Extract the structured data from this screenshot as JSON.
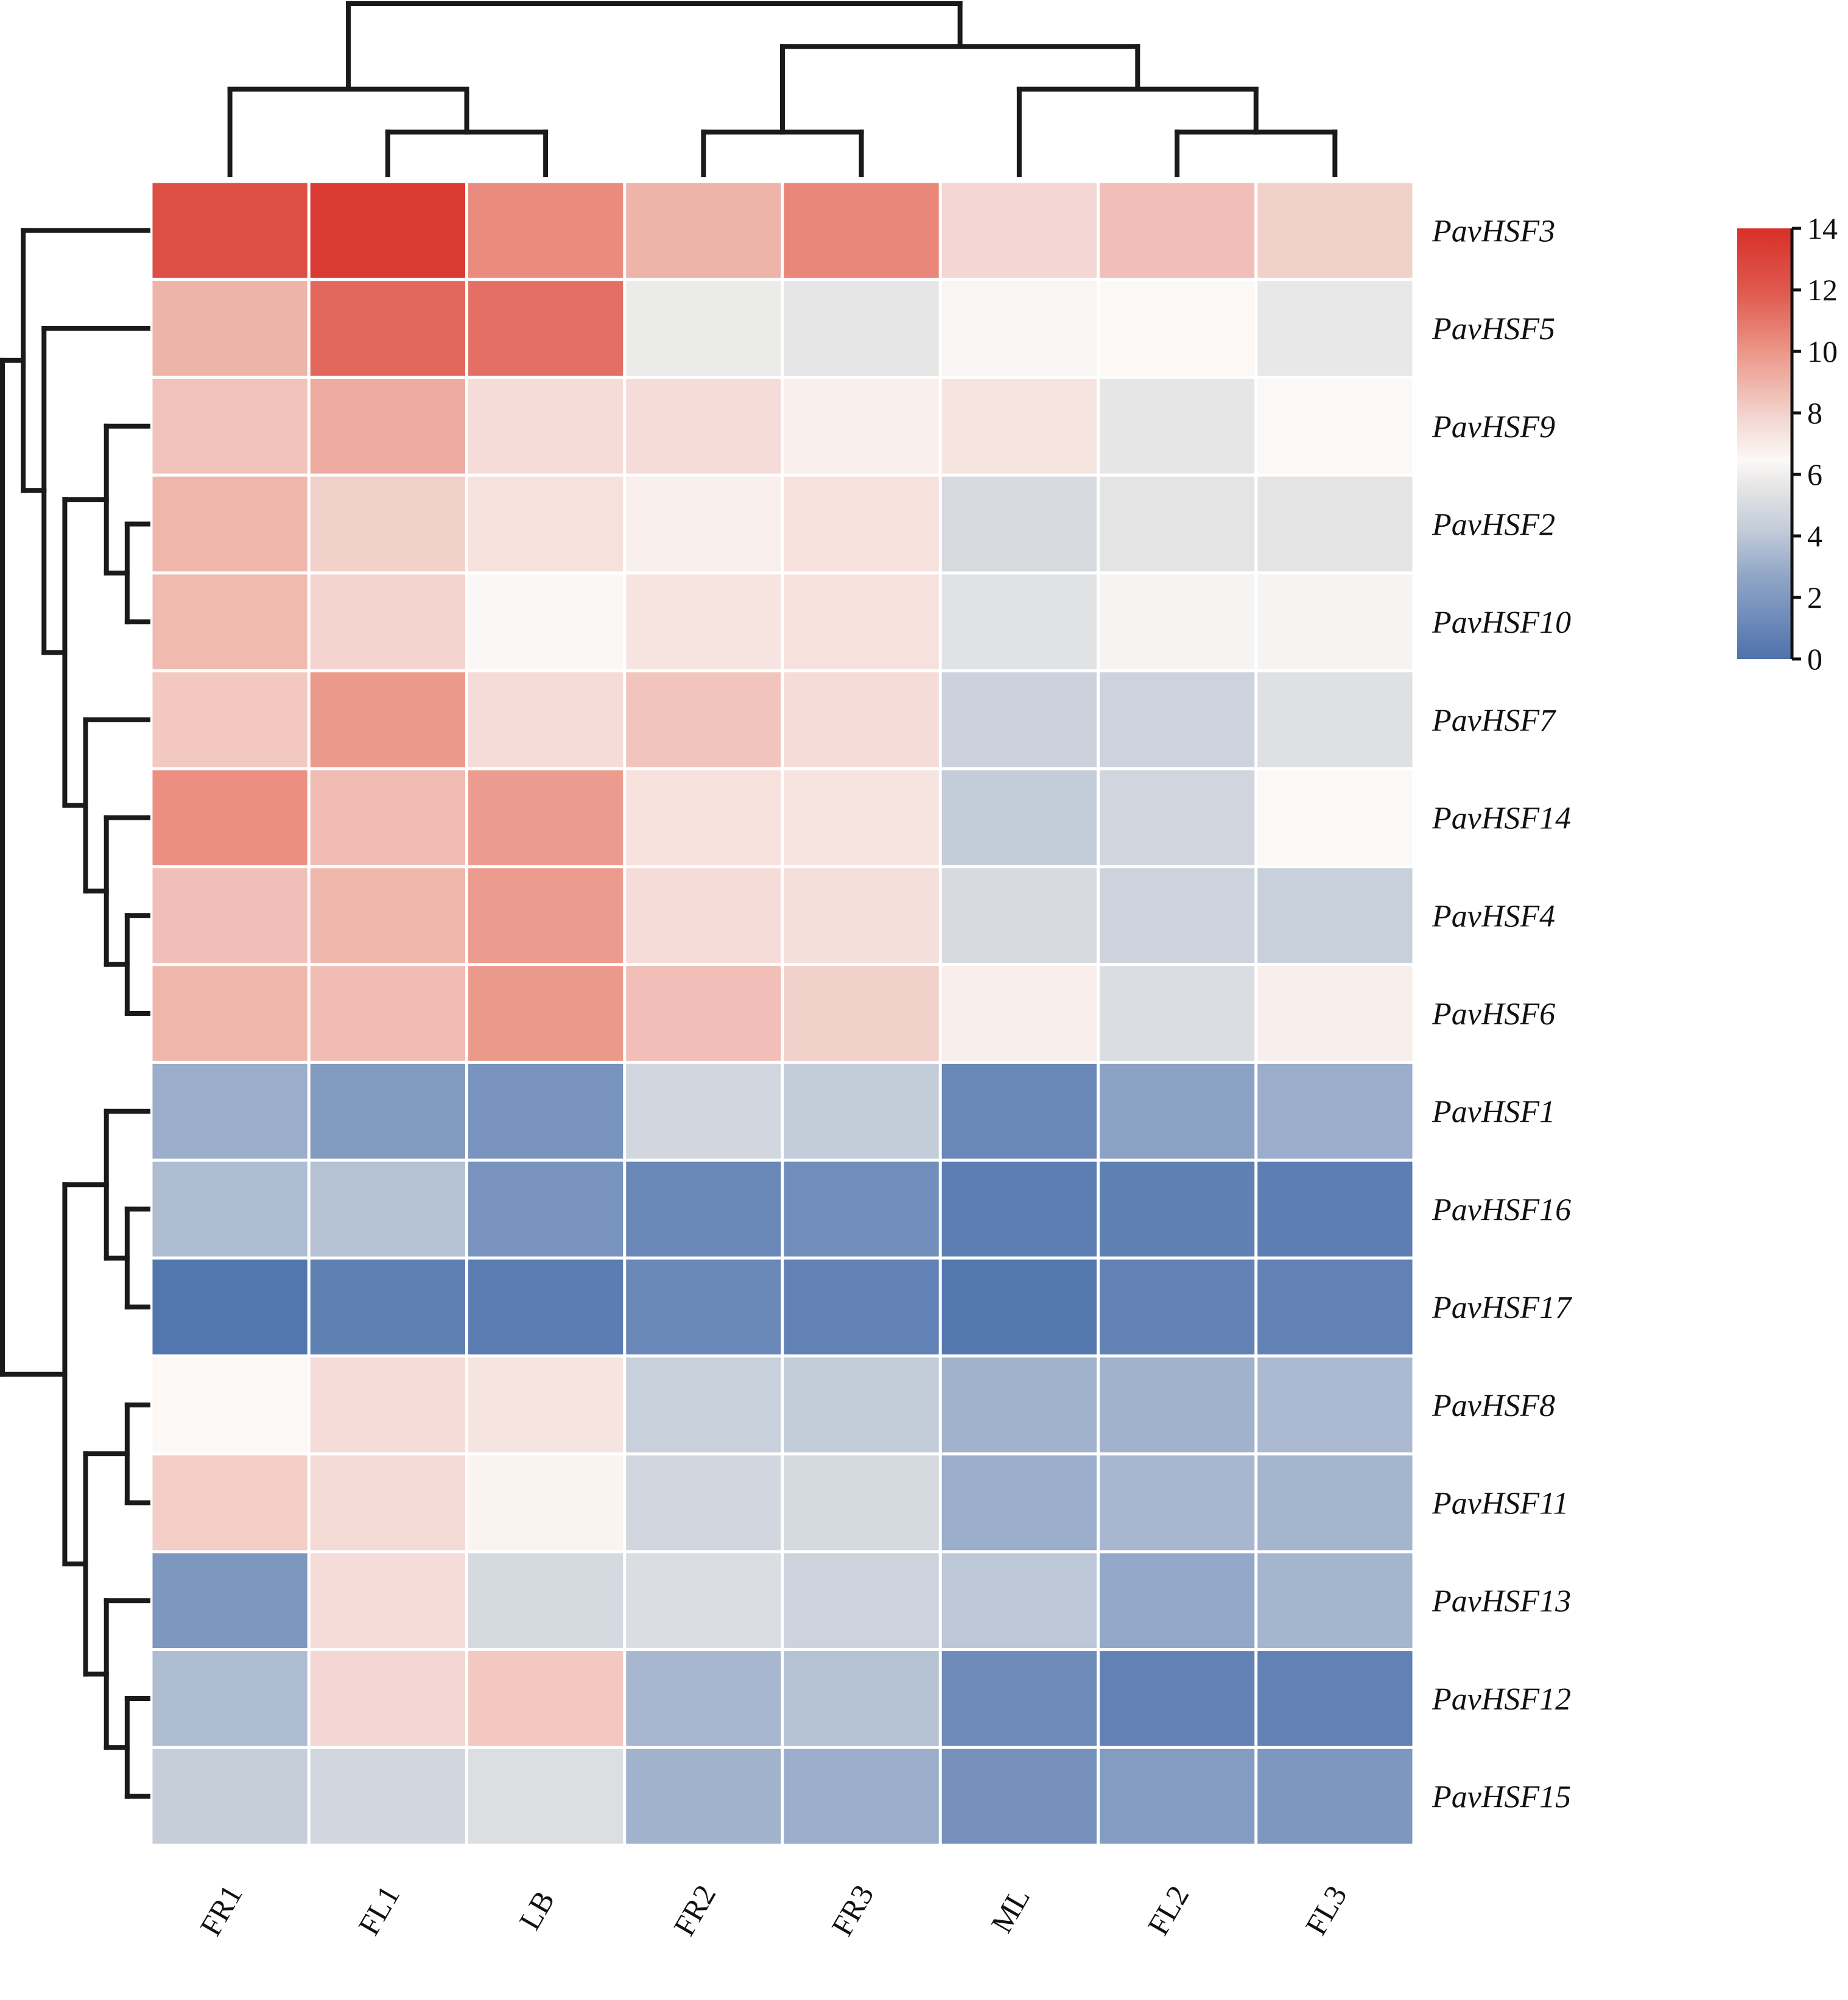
{
  "chart_data": {
    "type": "heatmap",
    "title": "",
    "xlabel": "",
    "ylabel": "",
    "columns": [
      "FR1",
      "FL1",
      "LB",
      "FR2",
      "FR3",
      "ML",
      "FL2",
      "FL3"
    ],
    "rows": [
      "PavHSF3",
      "PavHSF5",
      "PavHSF9",
      "PavHSF2",
      "PavHSF10",
      "PavHSF7",
      "PavHSF14",
      "PavHSF4",
      "PavHSF6",
      "PavHSF1",
      "PavHSF16",
      "PavHSF17",
      "PavHSF8",
      "PavHSF11",
      "PavHSF13",
      "PavHSF12",
      "PavHSF15"
    ],
    "values": [
      [
        12.5,
        13.5,
        10.3,
        9.0,
        10.5,
        7.8,
        8.6,
        8.0
      ],
      [
        9.0,
        11.5,
        11.2,
        5.8,
        5.6,
        6.3,
        6.5,
        5.7
      ],
      [
        8.5,
        9.3,
        7.6,
        7.6,
        6.8,
        7.3,
        5.6,
        6.5
      ],
      [
        8.9,
        8.0,
        7.4,
        6.8,
        7.4,
        5.0,
        5.5,
        5.5
      ],
      [
        8.8,
        7.9,
        6.4,
        7.3,
        7.4,
        5.4,
        6.2,
        6.2
      ],
      [
        8.3,
        9.9,
        7.6,
        8.4,
        7.6,
        4.5,
        4.6,
        5.3
      ],
      [
        10.2,
        8.7,
        9.8,
        7.4,
        7.3,
        4.2,
        4.7,
        6.5
      ],
      [
        8.6,
        8.9,
        9.8,
        7.6,
        7.5,
        5.0,
        4.6,
        4.4
      ],
      [
        8.9,
        8.7,
        9.9,
        8.6,
        8.0,
        6.9,
        5.1,
        6.9
      ],
      [
        3.0,
        2.1,
        1.7,
        4.8,
        4.2,
        1.1,
        2.5,
        3.0
      ],
      [
        3.6,
        3.8,
        1.7,
        1.1,
        1.4,
        0.6,
        0.7,
        0.6
      ],
      [
        0.2,
        0.7,
        0.5,
        1.1,
        0.8,
        0.3,
        0.8,
        0.8
      ],
      [
        6.5,
        7.6,
        7.3,
        4.4,
        4.2,
        3.2,
        3.2,
        3.5
      ],
      [
        8.1,
        7.7,
        6.7,
        4.8,
        4.9,
        3.0,
        3.4,
        3.3
      ],
      [
        1.9,
        7.6,
        4.9,
        5.1,
        4.6,
        4.0,
        2.8,
        3.3
      ],
      [
        3.6,
        7.8,
        8.3,
        3.4,
        3.8,
        1.3,
        0.8,
        0.8
      ],
      [
        4.3,
        4.8,
        5.2,
        3.2,
        3.0,
        1.6,
        2.2,
        1.9
      ]
    ],
    "colorbar": {
      "min": 0,
      "max": 14,
      "ticks": [
        "0",
        "2",
        "4",
        "6",
        "8",
        "10",
        "12",
        "14"
      ],
      "low_color": "#4E72AC",
      "mid_color": "#FBF9F7",
      "high_color": "#D73027",
      "placement": "right"
    },
    "column_dendrogram": "((FR1,(FL1,LB)),((FR2,FR3),(ML,(FL2,FL3))))",
    "row_dendrogram": "((PavHSF3,(PavHSF5,((PavHSF9,(PavHSF2,PavHSF10)),(PavHSF7,(PavHSF14,(PavHSF4,PavHSF6)))))),((PavHSF1,(PavHSF16,PavHSF17)),((PavHSF8,PavHSF11),(PavHSF13,(PavHSF12,PavHSF15)))))"
  }
}
